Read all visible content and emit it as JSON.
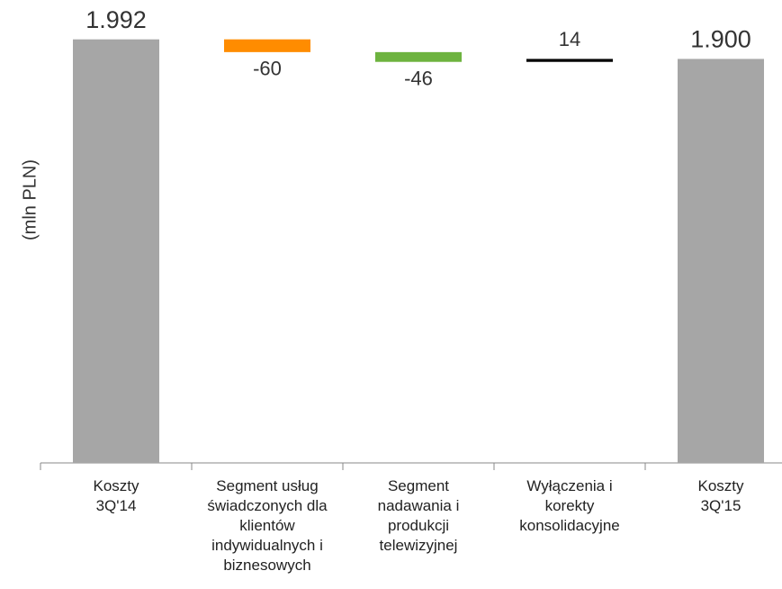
{
  "chart_data": {
    "type": "waterfall",
    "y_label": "(mln PLN)",
    "categories": [
      "Koszty\n3Q'14",
      "Segment usług\nświadczonych dla\nklientów\nindywidualnych i\nbiznesowych",
      "Segment\nnadawania i\nprodukcji\ntelewizyjnej",
      "Wyłączenia i\nkorekty\nkonsolidacyjne",
      "Koszty\n3Q'15"
    ],
    "values": [
      1992,
      -60,
      -46,
      14,
      1900
    ],
    "value_labels": [
      "1.992",
      "-60",
      "-46",
      "14",
      "1.900"
    ],
    "totals": [
      true,
      false,
      false,
      false,
      true
    ],
    "colors": [
      "#a6a6a6",
      "#ff8c00",
      "#6db33f",
      "#000000",
      "#a6a6a6"
    ],
    "ylim": [
      0,
      2050
    ]
  }
}
